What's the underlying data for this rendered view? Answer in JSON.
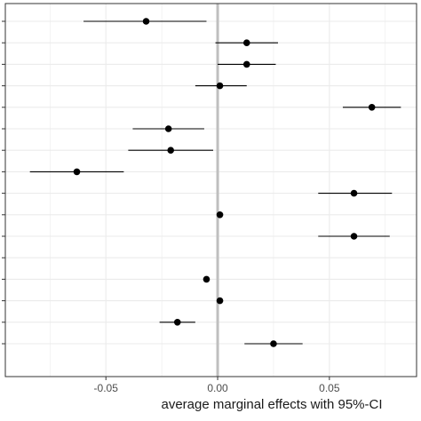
{
  "chart_data": {
    "type": "forest",
    "title": "",
    "xlabel": "average marginal effects with 95%-CI",
    "ylabel": "",
    "xlim": [
      -0.095,
      0.089
    ],
    "x_ticks": [
      -0.05,
      0.0,
      0.05
    ],
    "x_tick_labels": [
      "-0.05",
      "0.00",
      "0.05"
    ],
    "reference_line": 0,
    "grid": true,
    "legend": "none",
    "colors": {
      "point": "#000000",
      "reference_line": "#bfbfbf",
      "grid": "#ebebeb",
      "panel_border": "#333333"
    },
    "points": [
      {
        "estimate": -0.032,
        "ci_low": -0.06,
        "ci_high": -0.005
      },
      {
        "estimate": 0.013,
        "ci_low": -0.001,
        "ci_high": 0.027
      },
      {
        "estimate": 0.013,
        "ci_low": 0.0,
        "ci_high": 0.026
      },
      {
        "estimate": 0.001,
        "ci_low": -0.01,
        "ci_high": 0.013
      },
      {
        "estimate": 0.069,
        "ci_low": 0.056,
        "ci_high": 0.082
      },
      {
        "estimate": -0.022,
        "ci_low": -0.038,
        "ci_high": -0.006
      },
      {
        "estimate": -0.021,
        "ci_low": -0.04,
        "ci_high": -0.002
      },
      {
        "estimate": -0.063,
        "ci_low": -0.084,
        "ci_high": -0.042
      },
      {
        "estimate": 0.061,
        "ci_low": 0.045,
        "ci_high": 0.078
      },
      {
        "estimate": 0.001,
        "ci_low": 0.001,
        "ci_high": 0.001
      },
      {
        "estimate": 0.061,
        "ci_low": 0.045,
        "ci_high": 0.077
      },
      {
        "estimate": null,
        "ci_low": null,
        "ci_high": null
      },
      {
        "estimate": -0.005,
        "ci_low": -0.005,
        "ci_high": -0.005
      },
      {
        "estimate": 0.001,
        "ci_low": 0.001,
        "ci_high": 0.001
      },
      {
        "estimate": -0.018,
        "ci_low": -0.026,
        "ci_high": -0.01
      },
      {
        "estimate": 0.025,
        "ci_low": 0.012,
        "ci_high": 0.038
      }
    ]
  }
}
